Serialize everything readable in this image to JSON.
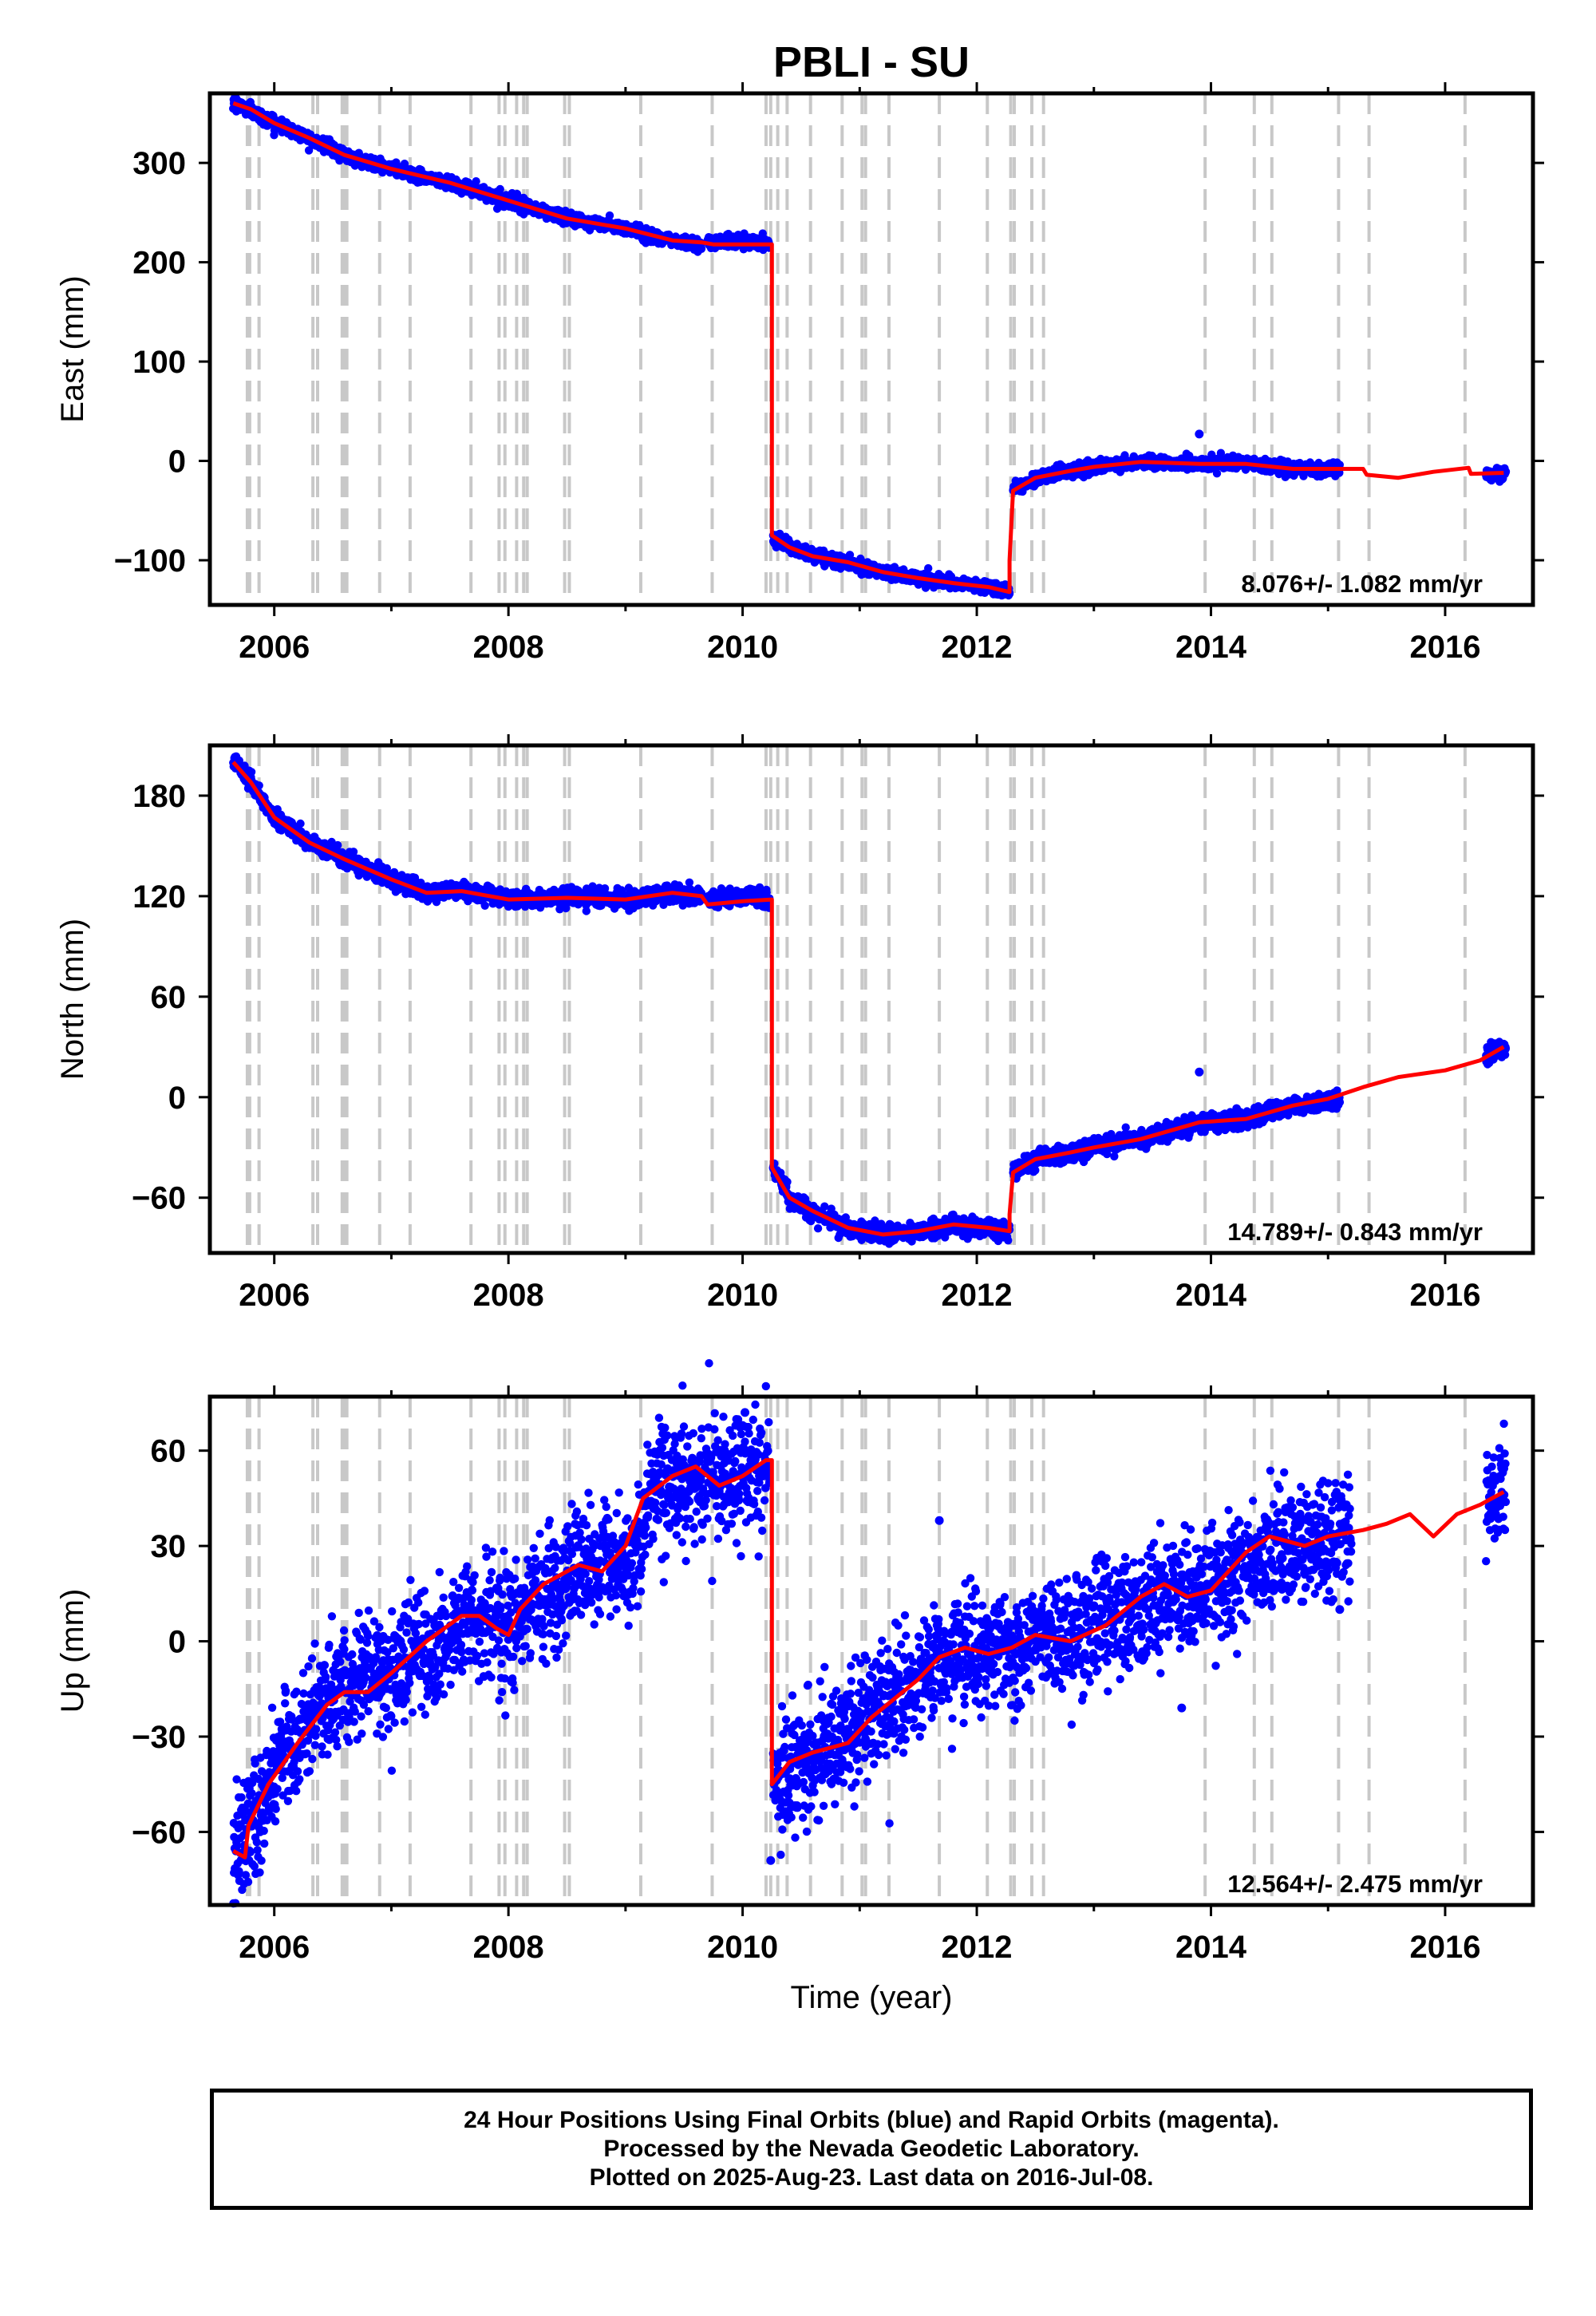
{
  "title": "PBLI - SU",
  "xlabel": "Time (year)",
  "colors": {
    "points": "#0000ff",
    "model": "#ff0000",
    "events": "#c8c8c8",
    "frame": "#000000"
  },
  "footer": {
    "line1": "24 Hour Positions Using Final Orbits (blue) and Rapid Orbits (magenta).",
    "line2": "Processed by the Nevada Geodetic Laboratory.",
    "line3": "Plotted on 2025-Aug-23. Last data on 2016-Jul-08."
  },
  "chart_data": [
    {
      "type": "scatter",
      "ylabel": "East (mm)",
      "rate_label": "8.076+/- 1.082 mm/yr",
      "xlim": [
        2005.45,
        2016.75
      ],
      "ylim": [
        -145,
        370
      ],
      "x_ticks": [
        2006,
        2008,
        2010,
        2012,
        2014,
        2016
      ],
      "y_ticks": [
        -100,
        0,
        100,
        200,
        300
      ],
      "series": [
        {
          "role": "observations",
          "segments": [
            {
              "x": [
                2005.65,
                2005.8,
                2006.0,
                2006.3,
                2006.6,
                2007.0,
                2007.5,
                2008.0,
                2008.5,
                2009.0,
                2009.4,
                2009.65
              ],
              "y": [
                363,
                352,
                340,
                325,
                308,
                294,
                280,
                262,
                244,
                234,
                222,
                218
              ]
            },
            {
              "x": [
                2009.7,
                2009.9,
                2010.1,
                2010.23
              ],
              "y": [
                219,
                222,
                221,
                218
              ]
            },
            {
              "x": [
                2010.26,
                2010.4,
                2010.6,
                2010.9,
                2011.2,
                2011.5,
                2011.8,
                2012.1,
                2012.28
              ],
              "y": [
                -75,
                -87,
                -96,
                -102,
                -112,
                -118,
                -123,
                -127,
                -132
              ]
            },
            {
              "x": [
                2012.31,
                2012.5,
                2012.8,
                2013.0,
                2013.4,
                2013.9,
                2014.3,
                2014.7,
                2015.1
              ],
              "y": [
                -30,
                -17,
                -10,
                -6,
                -1,
                -3,
                -3,
                -8,
                -8
              ]
            },
            {
              "x": [
                2016.35,
                2016.52
              ],
              "y": [
                -14,
                -12
              ]
            }
          ],
          "outliers": {
            "x": [
              2013.9
            ],
            "y": [
              27
            ]
          },
          "jitter": 3.0
        },
        {
          "role": "model",
          "x": [
            2005.65,
            2005.8,
            2006.0,
            2006.3,
            2006.6,
            2007.0,
            2007.5,
            2008.0,
            2008.5,
            2009.0,
            2009.4,
            2009.65,
            2009.75,
            2010.0,
            2010.25,
            2010.25,
            2010.4,
            2010.6,
            2010.9,
            2011.2,
            2011.5,
            2011.8,
            2012.1,
            2012.28,
            2012.28,
            2012.31,
            2012.5,
            2012.8,
            2013.0,
            2013.4,
            2013.9,
            2014.3,
            2014.7,
            2015.0,
            2015.3,
            2015.33,
            2015.6,
            2015.9,
            2016.2,
            2016.22,
            2016.5
          ],
          "y": [
            360,
            354,
            340,
            325,
            308,
            294,
            280,
            262,
            244,
            234,
            222,
            220,
            218,
            218,
            218,
            -75,
            -87,
            -96,
            -102,
            -112,
            -118,
            -123,
            -127,
            -132,
            -100,
            -30,
            -17,
            -10,
            -6,
            -1,
            -3,
            -3,
            -8,
            -8,
            -8,
            -14,
            -17,
            -11,
            -7,
            -13,
            -12
          ]
        }
      ]
    },
    {
      "type": "scatter",
      "ylabel": "North (mm)",
      "rate_label": "14.789+/- 0.843 mm/yr",
      "xlim": [
        2005.45,
        2016.75
      ],
      "ylim": [
        -93,
        210
      ],
      "x_ticks": [
        2006,
        2008,
        2010,
        2012,
        2014,
        2016
      ],
      "y_ticks": [
        -60,
        0,
        60,
        120,
        180
      ],
      "series": [
        {
          "role": "observations",
          "segments": [
            {
              "x": [
                2005.65,
                2005.8,
                2006.0,
                2006.3,
                2006.6,
                2007.0,
                2007.3,
                2007.6,
                2008.0,
                2008.5,
                2009.0,
                2009.4,
                2009.65
              ],
              "y": [
                202,
                188,
                167,
                152,
                142,
                130,
                122,
                123,
                118,
                119,
                118,
                122,
                120
              ]
            },
            {
              "x": [
                2009.7,
                2009.9,
                2010.1,
                2010.23
              ],
              "y": [
                118,
                120,
                119,
                117
              ]
            },
            {
              "x": [
                2010.26,
                2010.4,
                2010.6,
                2010.9,
                2011.2,
                2011.5,
                2011.8,
                2012.1,
                2012.28
              ],
              "y": [
                -42,
                -60,
                -68,
                -78,
                -82,
                -80,
                -76,
                -78,
                -80
              ]
            },
            {
              "x": [
                2012.31,
                2012.5,
                2012.8,
                2013.0,
                2013.4,
                2013.9,
                2014.3,
                2014.7,
                2015.1
              ],
              "y": [
                -45,
                -37,
                -33,
                -30,
                -25,
                -15,
                -13,
                -5,
                -1
              ]
            },
            {
              "x": [
                2016.35,
                2016.52
              ],
              "y": [
                26,
                30
              ]
            }
          ],
          "outliers": {
            "x": [
              2013.9
            ],
            "y": [
              15
            ]
          },
          "jitter": 2.5
        },
        {
          "role": "model",
          "x": [
            2005.65,
            2005.8,
            2006.0,
            2006.3,
            2006.6,
            2007.0,
            2007.3,
            2007.6,
            2008.0,
            2008.5,
            2009.0,
            2009.4,
            2009.65,
            2009.7,
            2010.0,
            2010.25,
            2010.25,
            2010.4,
            2010.6,
            2010.9,
            2011.2,
            2011.5,
            2011.8,
            2012.1,
            2012.28,
            2012.28,
            2012.31,
            2012.5,
            2012.8,
            2013.0,
            2013.4,
            2013.9,
            2014.3,
            2014.7,
            2015.0,
            2015.3,
            2015.6,
            2016.0,
            2016.3,
            2016.5
          ],
          "y": [
            200,
            188,
            167,
            152,
            142,
            130,
            122,
            123,
            118,
            119,
            118,
            122,
            120,
            115,
            117,
            118,
            -42,
            -60,
            -68,
            -78,
            -82,
            -80,
            -76,
            -78,
            -80,
            -70,
            -45,
            -37,
            -33,
            -30,
            -25,
            -15,
            -13,
            -5,
            -1,
            6,
            12,
            16,
            22,
            30
          ]
        }
      ]
    },
    {
      "type": "scatter",
      "ylabel": "Up (mm)",
      "rate_label": "12.564+/- 2.475 mm/yr",
      "xlim": [
        2005.45,
        2016.75
      ],
      "ylim": [
        -83,
        77
      ],
      "x_ticks": [
        2006,
        2008,
        2010,
        2012,
        2014,
        2016
      ],
      "y_ticks": [
        -60,
        -30,
        0,
        30,
        60
      ],
      "series": [
        {
          "role": "observations",
          "segments": [
            {
              "x": [
                2005.65,
                2005.8,
                2006.0,
                2006.3,
                2006.6,
                2007.0,
                2007.4,
                2007.7,
                2008.0,
                2008.3,
                2008.7,
                2009.0,
                2009.2,
                2009.5,
                2009.8,
                2010.0,
                2010.23
              ],
              "y": [
                -68,
                -58,
                -40,
                -25,
                -15,
                -10,
                0,
                8,
                3,
                15,
                25,
                22,
                45,
                52,
                50,
                52,
                58
              ]
            },
            {
              "x": [
                2010.26,
                2010.5,
                2010.8,
                2011.0,
                2011.3,
                2011.6,
                2011.9,
                2012.2,
                2012.5,
                2012.8,
                2013.1,
                2013.4,
                2013.8,
                2014.1,
                2014.4,
                2014.7,
                2015.0,
                2015.2
              ],
              "y": [
                -45,
                -38,
                -33,
                -25,
                -18,
                -8,
                -4,
                -2,
                2,
                0,
                5,
                12,
                15,
                20,
                25,
                30,
                32,
                35
              ]
            },
            {
              "x": [
                2016.35,
                2016.52
              ],
              "y": [
                45,
                48
              ]
            }
          ],
          "outliers": {
            "x": [
              2011.68,
              2013.75,
              2010.24,
              2010.02,
              2015.1
            ],
            "y": [
              38,
              -21,
              -69,
              72,
              10
            ]
          },
          "jitter": 9.0
        },
        {
          "role": "model",
          "x": [
            2005.65,
            2005.75,
            2005.78,
            2005.95,
            2006.2,
            2006.45,
            2006.6,
            2006.8,
            2007.0,
            2007.3,
            2007.6,
            2007.75,
            2007.9,
            2008.0,
            2008.1,
            2008.3,
            2008.6,
            2008.8,
            2009.0,
            2009.15,
            2009.4,
            2009.6,
            2009.8,
            2010.0,
            2010.2,
            2010.25,
            2010.25,
            2010.4,
            2010.6,
            2010.9,
            2011.1,
            2011.3,
            2011.5,
            2011.68,
            2011.9,
            2012.1,
            2012.3,
            2012.5,
            2012.8,
            2013.1,
            2013.4,
            2013.6,
            2013.8,
            2014.0,
            2014.3,
            2014.5,
            2014.8,
            2015.0,
            2015.3,
            2015.5,
            2015.7,
            2015.9,
            2016.1,
            2016.3,
            2016.5
          ],
          "y": [
            -66,
            -68,
            -58,
            -45,
            -32,
            -20,
            -16,
            -16,
            -10,
            0,
            8,
            8,
            4,
            2,
            10,
            18,
            24,
            22,
            30,
            45,
            52,
            55,
            49,
            52,
            57,
            57,
            -45,
            -38,
            -35,
            -32,
            -24,
            -18,
            -12,
            -5,
            -2,
            -4,
            -2,
            2,
            0,
            5,
            14,
            18,
            14,
            16,
            28,
            33,
            30,
            33,
            35,
            37,
            40,
            33,
            40,
            43,
            47
          ]
        }
      ]
    }
  ],
  "event_lines_x": [
    2005.77,
    2005.79,
    2005.87,
    2006.33,
    2006.37,
    2006.58,
    2006.6,
    2006.62,
    2006.9,
    2007.16,
    2007.68,
    2007.92,
    2007.97,
    2008.07,
    2008.13,
    2008.16,
    2008.48,
    2008.52,
    2009.13,
    2009.74,
    2010.2,
    2010.24,
    2010.3,
    2010.38,
    2010.58,
    2010.85,
    2011.02,
    2011.05,
    2011.25,
    2011.68,
    2012.09,
    2012.29,
    2012.32,
    2012.47,
    2012.57,
    2013.95,
    2014.37,
    2014.52,
    2015.09,
    2015.35,
    2016.17
  ]
}
